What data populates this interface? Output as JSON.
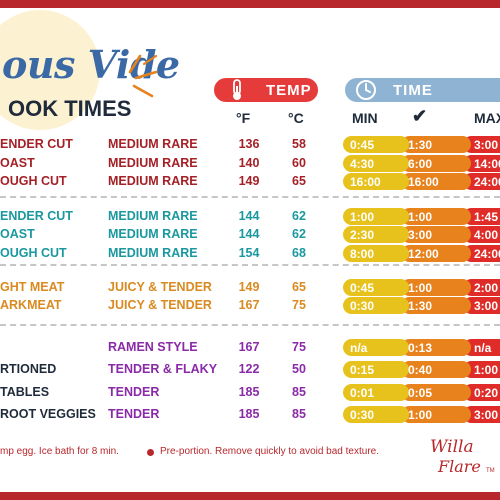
{
  "title": {
    "line1": "ous Vide",
    "line2": "OOK TIMES"
  },
  "headers": {
    "temp_label": "TEMP",
    "time_label": "TIME",
    "fahrenheit": "°F",
    "celsius": "°C",
    "min": "MIN",
    "max": "MAX",
    "check": "✔",
    "temp_icon": "thermometer-icon",
    "time_icon": "clock-icon"
  },
  "colors": {
    "brand_red": "#b8272c",
    "temp_pill": "#e63b3b",
    "time_pill": "#8fb3d2",
    "bar_min": "#e8c21c",
    "bar_mid": "#e8821c",
    "bar_max": "#df2c28",
    "group1": "#a52026",
    "group2": "#1a98a0",
    "group3": "#d98a20",
    "group4_name": "#1f2b3a",
    "group4_desc": "#8a2aa8"
  },
  "rows": [
    {
      "name": "ENDER CUT",
      "desc": "MEDIUM RARE",
      "f": "136",
      "c": "58",
      "min": "0:45",
      "mid": "1:30",
      "max": "3:00"
    },
    {
      "name": "OAST",
      "desc": "MEDIUM RARE",
      "f": "140",
      "c": "60",
      "min": "4:30",
      "mid": "6:00",
      "max": "14:00"
    },
    {
      "name": "OUGH CUT",
      "desc": "MEDIUM RARE",
      "f": "149",
      "c": "65",
      "min": "16:00",
      "mid": "16:00",
      "max": "24:00"
    },
    {
      "name": "ENDER CUT",
      "desc": "MEDIUM RARE",
      "f": "144",
      "c": "62",
      "min": "1:00",
      "mid": "1:00",
      "max": "1:45"
    },
    {
      "name": "OAST",
      "desc": "MEDIUM RARE",
      "f": "144",
      "c": "62",
      "min": "2:30",
      "mid": "3:00",
      "max": "4:00"
    },
    {
      "name": "OUGH CUT",
      "desc": "MEDIUM RARE",
      "f": "154",
      "c": "68",
      "min": "8:00",
      "mid": "12:00",
      "max": "24:00"
    },
    {
      "name": "GHT MEAT",
      "desc": "JUICY & TENDER",
      "f": "149",
      "c": "65",
      "min": "0:45",
      "mid": "1:00",
      "max": "2:00"
    },
    {
      "name": "ARKMEAT",
      "desc": "JUICY & TENDER",
      "f": "167",
      "c": "75",
      "min": "0:30",
      "mid": "1:30",
      "max": "3:00"
    },
    {
      "name": "",
      "desc": "RAMEN STYLE",
      "f": "167",
      "c": "75",
      "min": "n/a",
      "mid": "0:13",
      "max": "n/a"
    },
    {
      "name": "RTIONED",
      "desc": "TENDER & FLAKY",
      "f": "122",
      "c": "50",
      "min": "0:15",
      "mid": "0:40",
      "max": "1:00"
    },
    {
      "name": "TABLES",
      "desc": "TENDER",
      "f": "185",
      "c": "85",
      "min": "0:01",
      "mid": "0:05",
      "max": "0:20"
    },
    {
      "name": "ROOT VEGGIES",
      "desc": "TENDER",
      "f": "185",
      "c": "85",
      "min": "0:30",
      "mid": "1:00",
      "max": "3:00"
    }
  ],
  "footer": {
    "note_left": "mp egg. Ice bath for 8 min.",
    "note_right": "Pre-portion. Remove quickly to avoid bad texture."
  },
  "logo": {
    "line1": "Willa",
    "line2": "Flare",
    "tm": "TM"
  }
}
